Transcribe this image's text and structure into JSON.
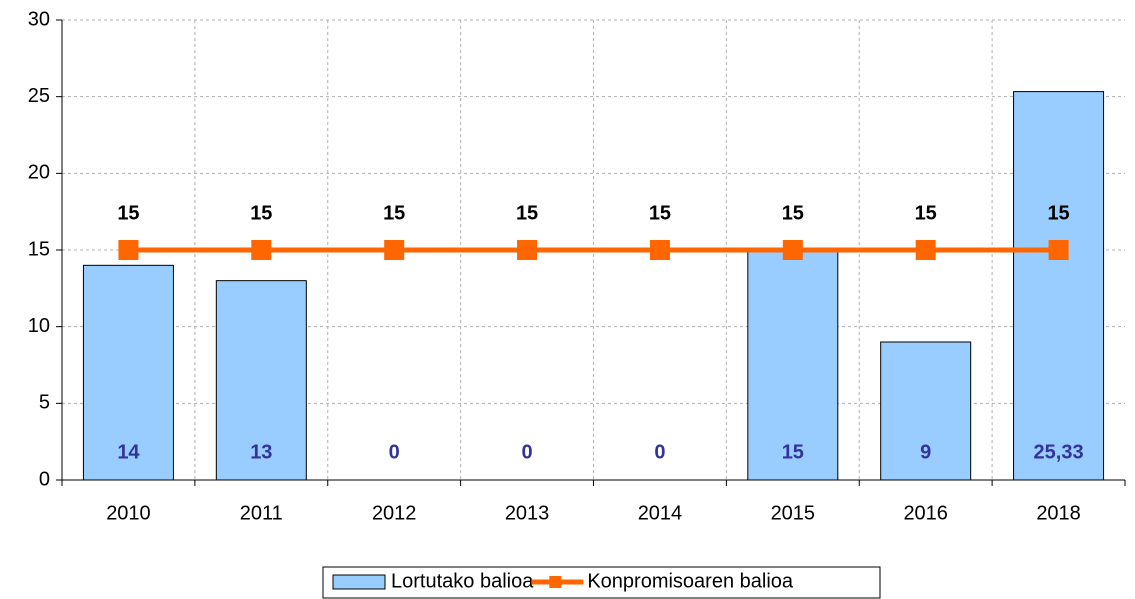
{
  "chart_data": {
    "type": "bar",
    "categories": [
      "2010",
      "2011",
      "2012",
      "2013",
      "2014",
      "2015",
      "2016",
      "2018"
    ],
    "series": [
      {
        "name": "Lortutako balioa",
        "color": "#99ccff",
        "values": [
          14,
          13,
          0,
          0,
          0,
          15,
          9,
          25.33
        ],
        "value_labels": [
          "14",
          "13",
          "0",
          "0",
          "0",
          "15",
          "9",
          "25,33"
        ]
      },
      {
        "name": "Konpromisoaren balioa",
        "type": "line",
        "color": "#ff6600",
        "values": [
          15,
          15,
          15,
          15,
          15,
          15,
          15,
          15
        ]
      }
    ],
    "ylim": [
      0,
      30
    ],
    "yticks": [
      0,
      5,
      10,
      15,
      20,
      25,
      30
    ],
    "grid": true,
    "legend": "bottom"
  }
}
